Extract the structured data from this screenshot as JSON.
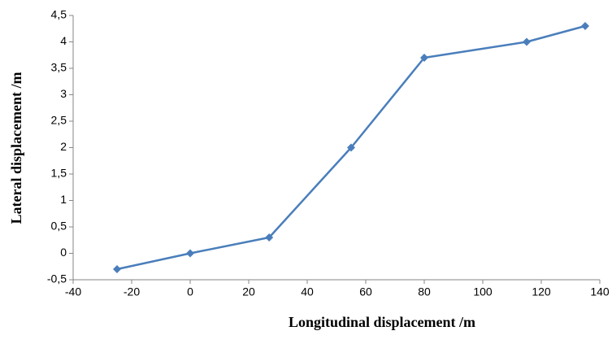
{
  "chart_data": {
    "type": "line",
    "x_label": "Longitudinal displacement /m",
    "y_label": "Lateral displacement /m",
    "x": [
      -25,
      0,
      27,
      55,
      80,
      115,
      135
    ],
    "series": [
      {
        "color": "#4a7ebb",
        "values": [
          -0.3,
          0,
          0.3,
          2,
          3.7,
          4,
          4.3
        ]
      }
    ],
    "xlim": [
      -40,
      140
    ],
    "xticks": [
      -40,
      -20,
      0,
      20,
      40,
      60,
      80,
      100,
      120,
      140
    ],
    "ylim": [
      -0.5,
      4.5
    ],
    "yticks": [
      {
        "value": -0.5,
        "label": "-0,5"
      },
      0,
      {
        "value": 0.5,
        "label": "0,5"
      },
      1,
      {
        "value": 1.5,
        "label": "1,5"
      },
      2,
      {
        "value": 2.5,
        "label": "2,5"
      },
      3,
      {
        "value": 3.5,
        "label": "3,5"
      },
      4,
      {
        "value": 4.5,
        "label": "4,5"
      }
    ],
    "grid": false
  }
}
